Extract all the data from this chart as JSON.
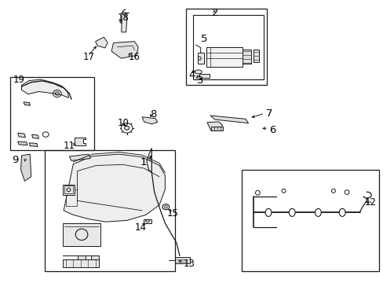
{
  "bg": "#ffffff",
  "lc": "#1a1a1a",
  "fig_w": 4.89,
  "fig_h": 3.6,
  "dpi": 100,
  "boxes": {
    "b19": [
      0.025,
      0.47,
      0.245,
      0.73
    ],
    "b2": [
      0.485,
      0.7,
      0.695,
      0.97
    ],
    "b5": [
      0.5,
      0.715,
      0.69,
      0.955
    ],
    "blarge": [
      0.115,
      0.04,
      0.455,
      0.47
    ],
    "b12": [
      0.63,
      0.04,
      0.99,
      0.4
    ]
  },
  "labels": {
    "1": [
      0.383,
      0.425,
      "right"
    ],
    "2": [
      0.553,
      0.955,
      "left"
    ],
    "3": [
      0.513,
      0.715,
      "left"
    ],
    "4": [
      0.492,
      0.735,
      "left"
    ],
    "5": [
      0.523,
      0.865,
      "left"
    ],
    "6": [
      0.703,
      0.54,
      "left"
    ],
    "7": [
      0.693,
      0.6,
      "left"
    ],
    "8": [
      0.39,
      0.595,
      "left"
    ],
    "9": [
      0.03,
      0.435,
      "left"
    ],
    "10": [
      0.305,
      0.565,
      "left"
    ],
    "11": [
      0.165,
      0.485,
      "left"
    ],
    "12": [
      0.982,
      0.285,
      "right"
    ],
    "13": [
      0.478,
      0.065,
      "left"
    ],
    "14": [
      0.35,
      0.195,
      "left"
    ],
    "15": [
      0.435,
      0.245,
      "left"
    ],
    "16": [
      0.335,
      0.8,
      "left"
    ],
    "17": [
      0.215,
      0.8,
      "left"
    ],
    "18": [
      0.305,
      0.94,
      "left"
    ],
    "19": [
      0.033,
      0.72,
      "left"
    ]
  }
}
